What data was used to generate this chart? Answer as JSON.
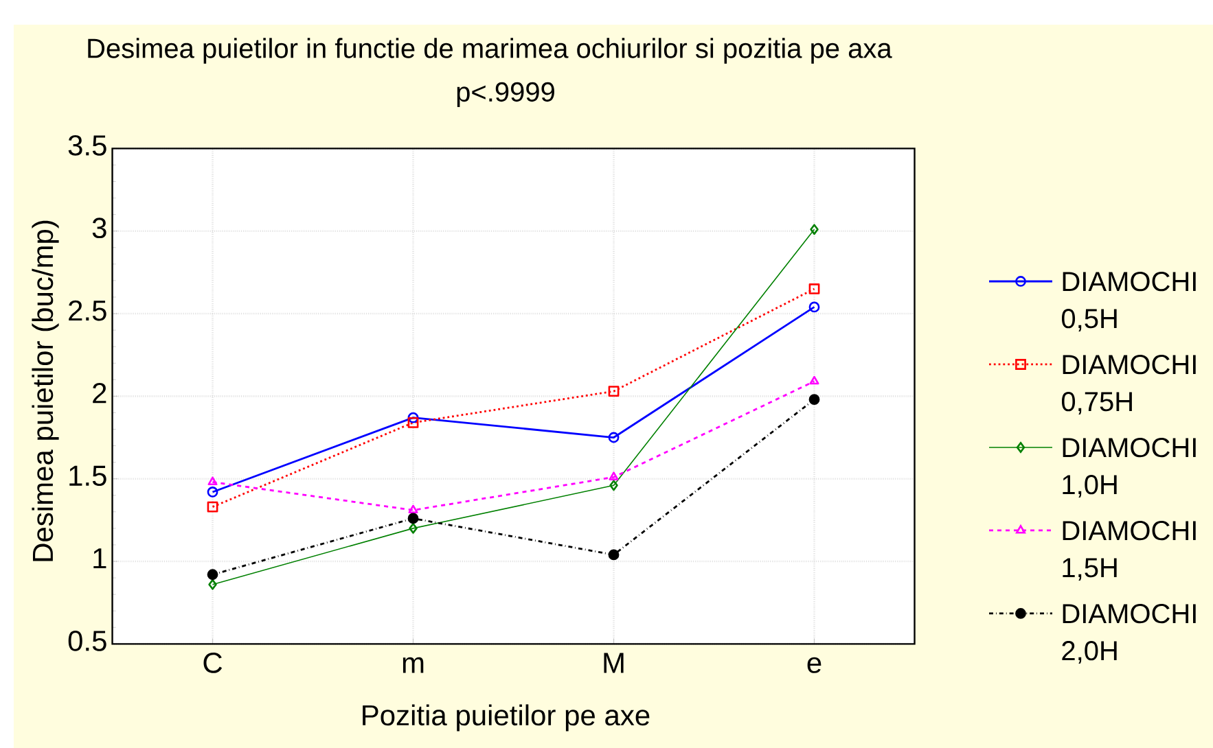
{
  "chart_data": {
    "type": "line",
    "title": "Desimea puietilor in functie de marimea ochiurilor si pozitia pe axa",
    "subtitle": "p<.9999",
    "xlabel": "Pozitia puietilor pe axe",
    "ylabel": "Desimea puietilor (buc/mp)",
    "categories": [
      "C",
      "m",
      "M",
      "e"
    ],
    "series": [
      {
        "name": "DIAMOCHI 0,5H",
        "color": "#0000ff",
        "marker": "circle",
        "line_style": "solid",
        "values": [
          1.42,
          1.87,
          1.75,
          2.54
        ]
      },
      {
        "name": "DIAMOCHI 0,75H",
        "color": "#ff0000",
        "marker": "square",
        "line_style": "dotted",
        "values": [
          1.33,
          1.84,
          2.03,
          2.65
        ]
      },
      {
        "name": "DIAMOCHI 1,0H",
        "color": "#008000",
        "marker": "diamond",
        "line_style": "solid",
        "values": [
          0.86,
          1.2,
          1.46,
          3.01
        ]
      },
      {
        "name": "DIAMOCHI 1,5H",
        "color": "#ff00ff",
        "marker": "triangle",
        "line_style": "dashed",
        "values": [
          1.48,
          1.31,
          1.51,
          2.09
        ]
      },
      {
        "name": "DIAMOCHI 2,0H",
        "color": "#000000",
        "marker": "filled circle",
        "line_style": "dashdot",
        "values": [
          0.92,
          1.26,
          1.04,
          1.98
        ]
      }
    ],
    "ylim": [
      0.5,
      3.5
    ],
    "yticks": [
      0.5,
      1,
      1.5,
      2,
      2.5,
      3,
      3.5
    ],
    "grid": true,
    "legend": "right"
  }
}
